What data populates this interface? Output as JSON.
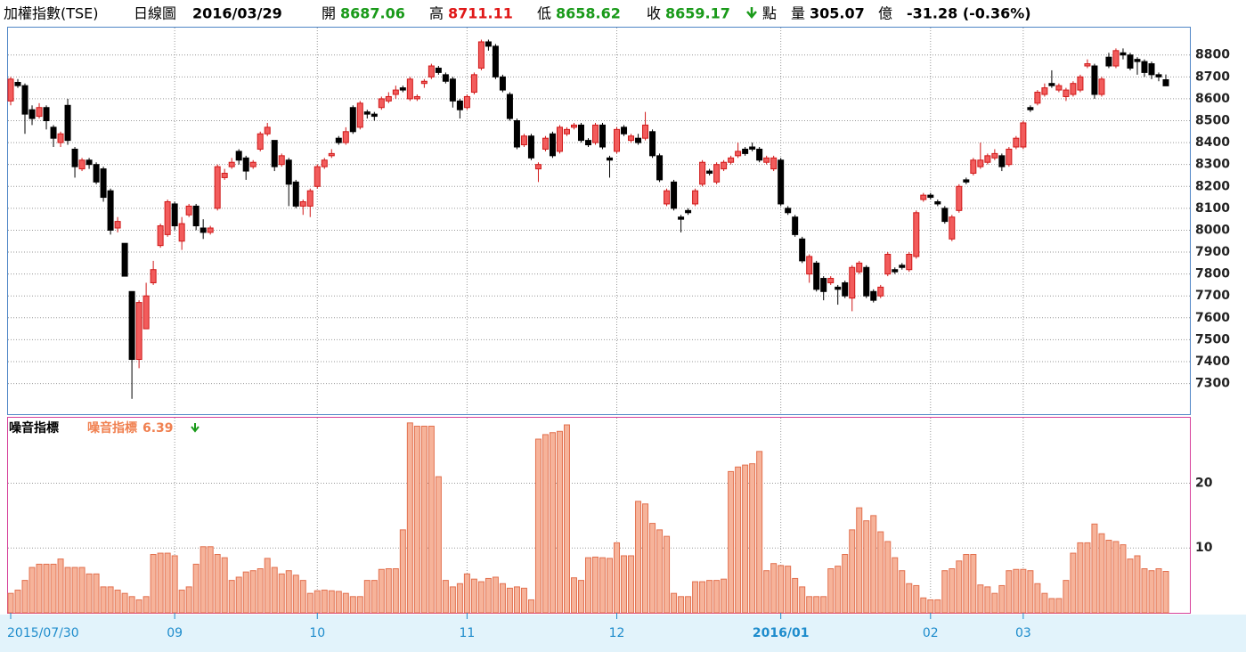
{
  "header": {
    "title": "加權指數(TSE)",
    "period": "日線圖",
    "date": "2016/03/29",
    "open_label": "開",
    "open": "8687.06",
    "high_label": "高",
    "high": "8711.11",
    "low_label": "低",
    "low": "8658.62",
    "close_label": "收",
    "close": "8659.17",
    "unit": "點",
    "volume_label": "量",
    "volume": "305.07",
    "volume_unit": "億",
    "change": "-31.28 (-0.36%)"
  },
  "chart_data": [
    {
      "type": "candlestick",
      "up_color": "#f25c5c",
      "up_edge": "#d01818",
      "down_color": "#000000",
      "open": [
        8590,
        8675,
        8660,
        8550,
        8520,
        8560,
        8470,
        8400,
        8570,
        8370,
        8280,
        8320,
        8300,
        8280,
        8180,
        8010,
        7940,
        7720,
        7410,
        7550,
        7760,
        7930,
        7980,
        8120,
        7950,
        8070,
        8110,
        8010,
        7990,
        8100,
        8240,
        8290,
        8360,
        8330,
        8290,
        8370,
        8440,
        8410,
        8300,
        8320,
        8220,
        8110,
        8110,
        8200,
        8290,
        8340,
        8420,
        8400,
        8560,
        8470,
        8540,
        8530,
        8560,
        8590,
        8620,
        8650,
        8600,
        8600,
        8670,
        8700,
        8740,
        8710,
        8690,
        8590,
        8560,
        8630,
        8740,
        8860,
        8840,
        8700,
        8620,
        8500,
        8390,
        8430,
        8280,
        8370,
        8440,
        8360,
        8440,
        8470,
        8480,
        8410,
        8400,
        8480,
        8330,
        8360,
        8470,
        8410,
        8420,
        8420,
        8450,
        8340,
        8120,
        8220,
        8060,
        8090,
        8120,
        8210,
        8270,
        8220,
        8280,
        8310,
        8340,
        8370,
        8380,
        8370,
        8310,
        8280,
        8320,
        8100,
        8060,
        7960,
        7800,
        7850,
        7780,
        7760,
        7740,
        7760,
        7690,
        7810,
        7830,
        7720,
        7700,
        7800,
        7820,
        7840,
        7820,
        7880,
        8140,
        8160,
        8130,
        8100,
        7960,
        8090,
        8230,
        8260,
        8290,
        8310,
        8330,
        8340,
        8300,
        8380,
        8380,
        8560,
        8580,
        8620,
        8670,
        8640,
        8610,
        8620,
        8640,
        8750,
        8750,
        8620,
        8790,
        8750,
        8810,
        8800,
        8780,
        8770,
        8760,
        8710,
        8687.06
      ],
      "high": [
        8700,
        8690,
        8670,
        8570,
        8580,
        8570,
        8480,
        8450,
        8600,
        8380,
        8330,
        8330,
        8310,
        8290,
        8190,
        8060,
        7940,
        7720,
        7680,
        7760,
        7860,
        8030,
        8140,
        8130,
        8060,
        8120,
        8120,
        8050,
        8020,
        8300,
        8280,
        8330,
        8370,
        8340,
        8320,
        8450,
        8490,
        8410,
        8350,
        8330,
        8230,
        8140,
        8190,
        8300,
        8330,
        8370,
        8430,
        8470,
        8570,
        8590,
        8550,
        8540,
        8610,
        8630,
        8660,
        8660,
        8700,
        8620,
        8690,
        8760,
        8750,
        8720,
        8700,
        8600,
        8620,
        8720,
        8870,
        8870,
        8850,
        8710,
        8630,
        8510,
        8440,
        8440,
        8310,
        8430,
        8450,
        8480,
        8470,
        8490,
        8490,
        8420,
        8490,
        8490,
        8340,
        8470,
        8480,
        8440,
        8440,
        8540,
        8460,
        8350,
        8190,
        8230,
        8070,
        8100,
        8190,
        8320,
        8280,
        8310,
        8320,
        8340,
        8400,
        8380,
        8400,
        8380,
        8340,
        8340,
        8330,
        8110,
        8070,
        7970,
        7890,
        7860,
        7790,
        7790,
        7750,
        7770,
        7840,
        7860,
        7840,
        7730,
        7750,
        7900,
        7830,
        7850,
        7900,
        8090,
        8170,
        8170,
        8140,
        8110,
        8070,
        8210,
        8240,
        8330,
        8400,
        8350,
        8370,
        8350,
        8380,
        8430,
        8500,
        8570,
        8640,
        8670,
        8730,
        8670,
        8650,
        8680,
        8710,
        8780,
        8760,
        8700,
        8810,
        8830,
        8830,
        8810,
        8790,
        8780,
        8770,
        8720,
        8711.11
      ],
      "low": [
        8570,
        8650,
        8440,
        8480,
        8510,
        8460,
        8380,
        8380,
        8390,
        8240,
        8270,
        8280,
        8210,
        8130,
        7980,
        7990,
        7790,
        7230,
        7370,
        7550,
        7750,
        7920,
        7970,
        8000,
        7910,
        8060,
        8000,
        7960,
        7980,
        8090,
        8230,
        8280,
        8300,
        8230,
        8280,
        8360,
        8430,
        8270,
        8290,
        8110,
        8100,
        8070,
        8060,
        8190,
        8280,
        8330,
        8390,
        8390,
        8440,
        8460,
        8510,
        8500,
        8550,
        8580,
        8600,
        8630,
        8590,
        8590,
        8650,
        8690,
        8710,
        8670,
        8560,
        8510,
        8550,
        8620,
        8730,
        8820,
        8690,
        8630,
        8500,
        8370,
        8380,
        8320,
        8220,
        8360,
        8330,
        8350,
        8430,
        8460,
        8400,
        8380,
        8390,
        8370,
        8240,
        8350,
        8430,
        8400,
        8390,
        8410,
        8330,
        8220,
        8110,
        8090,
        7990,
        8070,
        8110,
        8200,
        8250,
        8210,
        8270,
        8300,
        8330,
        8340,
        8360,
        8310,
        8300,
        8270,
        8110,
        8070,
        7970,
        7850,
        7760,
        7720,
        7680,
        7750,
        7660,
        7690,
        7630,
        7800,
        7690,
        7670,
        7690,
        7790,
        7800,
        7820,
        7810,
        7870,
        8130,
        8140,
        8110,
        8030,
        7950,
        8080,
        8210,
        8250,
        8280,
        8300,
        8320,
        8270,
        8290,
        8370,
        8370,
        8540,
        8570,
        8610,
        8650,
        8630,
        8590,
        8610,
        8630,
        8740,
        8600,
        8610,
        8740,
        8740,
        8780,
        8730,
        8710,
        8700,
        8690,
        8680,
        8658.62
      ],
      "close": [
        8690,
        8660,
        8530,
        8510,
        8560,
        8500,
        8420,
        8440,
        8410,
        8290,
        8320,
        8300,
        8220,
        8150,
        8000,
        8040,
        7790,
        7410,
        7670,
        7700,
        7820,
        8020,
        8130,
        8020,
        8030,
        8110,
        8020,
        7990,
        8010,
        8290,
        8260,
        8310,
        8320,
        8270,
        8310,
        8440,
        8470,
        8290,
        8340,
        8210,
        8110,
        8130,
        8180,
        8290,
        8320,
        8350,
        8400,
        8450,
        8450,
        8580,
        8530,
        8520,
        8600,
        8610,
        8640,
        8640,
        8690,
        8610,
        8680,
        8750,
        8720,
        8680,
        8590,
        8550,
        8610,
        8710,
        8860,
        8840,
        8700,
        8640,
        8510,
        8380,
        8430,
        8330,
        8300,
        8420,
        8340,
        8470,
        8460,
        8480,
        8410,
        8390,
        8480,
        8380,
        8320,
        8460,
        8440,
        8430,
        8400,
        8480,
        8340,
        8230,
        8180,
        8100,
        8050,
        8080,
        8180,
        8310,
        8260,
        8300,
        8310,
        8330,
        8360,
        8350,
        8370,
        8320,
        8330,
        8330,
        8120,
        8080,
        7980,
        7860,
        7880,
        7730,
        7720,
        7780,
        7730,
        7700,
        7830,
        7850,
        7700,
        7680,
        7740,
        7890,
        7810,
        7830,
        7890,
        8080,
        8160,
        8150,
        8120,
        8040,
        8060,
        8200,
        8220,
        8320,
        8320,
        8340,
        8350,
        8290,
        8370,
        8420,
        8490,
        8550,
        8630,
        8650,
        8660,
        8660,
        8640,
        8670,
        8700,
        8760,
        8620,
        8690,
        8750,
        8820,
        8800,
        8740,
        8770,
        8720,
        8710,
        8700,
        8659.17
      ],
      "ylim": [
        7160,
        8925
      ],
      "yticks": [
        7300,
        7400,
        7500,
        7600,
        7700,
        7800,
        7900,
        8000,
        8100,
        8200,
        8300,
        8400,
        8500,
        8600,
        8700,
        8800
      ],
      "grid": true
    },
    {
      "type": "bar",
      "title": "噪音指標",
      "categories": [
        "2015/07/30",
        null,
        null,
        null,
        null,
        null,
        null,
        null,
        null,
        null,
        null,
        null,
        null,
        null,
        null,
        null,
        null,
        null,
        null,
        null,
        null,
        null,
        null,
        "09",
        null,
        null,
        null,
        null,
        null,
        null,
        null,
        null,
        null,
        null,
        null,
        null,
        null,
        null,
        null,
        null,
        null,
        null,
        null,
        "10",
        null,
        null,
        null,
        null,
        null,
        null,
        null,
        null,
        null,
        null,
        null,
        null,
        null,
        null,
        null,
        null,
        null,
        null,
        null,
        null,
        "11",
        null,
        null,
        null,
        null,
        null,
        null,
        null,
        null,
        null,
        null,
        null,
        null,
        null,
        null,
        null,
        null,
        null,
        null,
        null,
        null,
        "12",
        null,
        null,
        null,
        null,
        null,
        null,
        null,
        null,
        null,
        null,
        null,
        null,
        null,
        null,
        null,
        null,
        null,
        null,
        null,
        null,
        null,
        null,
        "2016/01",
        null,
        null,
        null,
        null,
        null,
        null,
        null,
        null,
        null,
        null,
        null,
        null,
        null,
        null,
        null,
        null,
        null,
        null,
        null,
        null,
        "02",
        null,
        null,
        null,
        null,
        null,
        null,
        null,
        null,
        null,
        null,
        null,
        null,
        "03",
        null,
        null,
        null,
        null,
        null,
        null,
        null,
        null,
        null,
        null,
        null,
        null,
        null,
        null,
        null,
        null,
        null,
        null,
        null,
        null
      ],
      "series": [
        {
          "name": "噪音指標",
          "color": "#f6b39a",
          "edge": "#e2704e",
          "label_color": "#f08050",
          "values": [
            3,
            3.5,
            5,
            7,
            7.5,
            7.5,
            7.5,
            8.3,
            7,
            7,
            7,
            6,
            6,
            4,
            4,
            3.5,
            3,
            2.5,
            2,
            2.5,
            9,
            9.2,
            9.2,
            8.8,
            3.5,
            4,
            7.5,
            10.2,
            10.2,
            9,
            8.5,
            5,
            5.5,
            6.3,
            6.5,
            6.8,
            8.4,
            7,
            6,
            6.5,
            5.8,
            5,
            3,
            3.4,
            3.5,
            3.4,
            3.3,
            3,
            2.5,
            2.5,
            5,
            5,
            6.7,
            6.8,
            6.8,
            12.8,
            29.3,
            28.8,
            28.8,
            28.8,
            21,
            5,
            4,
            4.5,
            6,
            5.2,
            4.8,
            5.3,
            5.5,
            4.5,
            3.8,
            4,
            3.8,
            2,
            26.8,
            27.5,
            27.8,
            28,
            29,
            5.4,
            5,
            8.5,
            8.6,
            8.5,
            8.4,
            10.8,
            8.8,
            8.8,
            17.2,
            16.8,
            13.8,
            12.8,
            11.8,
            3,
            2.5,
            2.5,
            4.8,
            4.8,
            5,
            5,
            5.2,
            21.8,
            22.5,
            22.8,
            23,
            24.9,
            6.5,
            7.6,
            7.3,
            7.2,
            5.3,
            4,
            2.5,
            2.5,
            2.5,
            6.8,
            7.2,
            9,
            12.8,
            16.2,
            14.2,
            15,
            12.5,
            11,
            8.5,
            6.5,
            4.5,
            4.2,
            2.3,
            2,
            2,
            6.5,
            6.8,
            8,
            9,
            9,
            4.3,
            4,
            3,
            4.2,
            6.5,
            6.7,
            6.7,
            6.5,
            4.5,
            3,
            2.2,
            2.2,
            5,
            9.2,
            10.8,
            10.8,
            13.7,
            12.2,
            11.2,
            11,
            10.5,
            8.3,
            8.8,
            6.8,
            6.5,
            6.8,
            6.39
          ]
        }
      ],
      "ylim": [
        0,
        30.1
      ],
      "yticks": [
        10,
        20
      ],
      "grid": true
    }
  ]
}
